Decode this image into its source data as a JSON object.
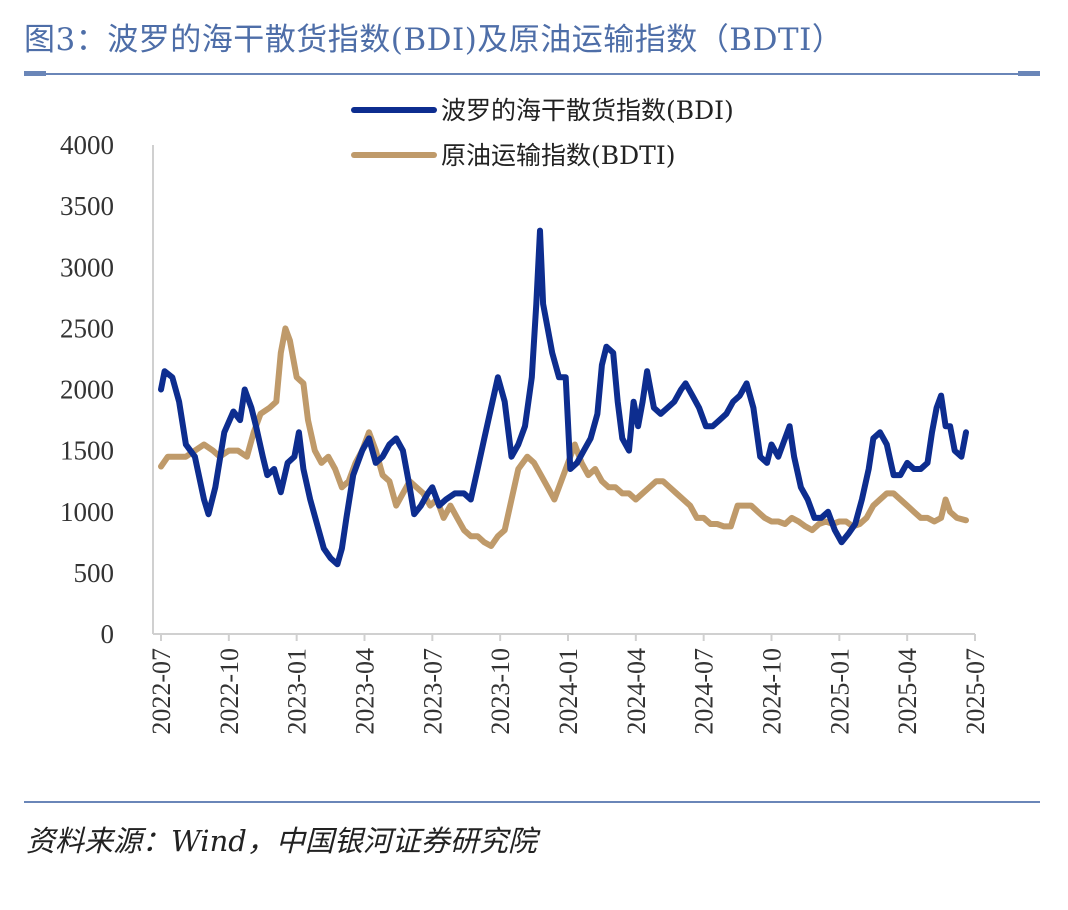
{
  "header": {
    "title": "图3：波罗的海干散货指数(BDI)及原油运输指数（BDTI）"
  },
  "footer": {
    "source": "资料来源：Wind，中国银河证券研究院"
  },
  "colors": {
    "bdi": "#0d2d8f",
    "bdti": "#bf9a6a",
    "rule": "#6a86b8",
    "title": "#4e6ea8"
  },
  "chart_data": {
    "type": "line",
    "title": "",
    "xlabel": "",
    "ylabel": "",
    "ylim": [
      0,
      4000
    ],
    "yticks": [
      "0",
      "500",
      "1000",
      "1500",
      "2000",
      "2500",
      "3000",
      "3500",
      "4000"
    ],
    "xticks": [
      "2022-07",
      "2022-10",
      "2023-01",
      "2023-04",
      "2023-07",
      "2023-10",
      "2024-01",
      "2024-04",
      "2024-07",
      "2024-10",
      "2025-01",
      "2025-04",
      "2025-07"
    ],
    "legend_position": "top",
    "series": [
      {
        "name": "波罗的海干散货指数(BDI)",
        "color": "#0d2d8f",
        "points": [
          [
            0,
            2000
          ],
          [
            0.08,
            2150
          ],
          [
            0.25,
            2100
          ],
          [
            0.4,
            1900
          ],
          [
            0.55,
            1550
          ],
          [
            0.75,
            1450
          ],
          [
            0.95,
            1100
          ],
          [
            1.05,
            980
          ],
          [
            1.2,
            1200
          ],
          [
            1.4,
            1650
          ],
          [
            1.6,
            1820
          ],
          [
            1.75,
            1750
          ],
          [
            1.85,
            2000
          ],
          [
            2.0,
            1850
          ],
          [
            2.1,
            1700
          ],
          [
            2.25,
            1450
          ],
          [
            2.35,
            1300
          ],
          [
            2.5,
            1350
          ],
          [
            2.65,
            1160
          ],
          [
            2.8,
            1400
          ],
          [
            2.95,
            1450
          ],
          [
            3.05,
            1650
          ],
          [
            3.15,
            1350
          ],
          [
            3.3,
            1100
          ],
          [
            3.45,
            900
          ],
          [
            3.6,
            700
          ],
          [
            3.75,
            620
          ],
          [
            3.9,
            570
          ],
          [
            4.0,
            700
          ],
          [
            4.1,
            950
          ],
          [
            4.25,
            1300
          ],
          [
            4.45,
            1500
          ],
          [
            4.6,
            1600
          ],
          [
            4.75,
            1400
          ],
          [
            4.9,
            1450
          ],
          [
            5.05,
            1550
          ],
          [
            5.2,
            1600
          ],
          [
            5.35,
            1500
          ],
          [
            5.5,
            1200
          ],
          [
            5.6,
            980
          ],
          [
            5.75,
            1050
          ],
          [
            5.9,
            1150
          ],
          [
            6.0,
            1200
          ],
          [
            6.15,
            1050
          ],
          [
            6.3,
            1100
          ],
          [
            6.5,
            1150
          ],
          [
            6.7,
            1150
          ],
          [
            6.85,
            1100
          ],
          [
            7.0,
            1350
          ],
          [
            7.15,
            1600
          ],
          [
            7.3,
            1850
          ],
          [
            7.45,
            2100
          ],
          [
            7.6,
            1900
          ],
          [
            7.75,
            1450
          ],
          [
            7.9,
            1550
          ],
          [
            8.05,
            1700
          ],
          [
            8.2,
            2100
          ],
          [
            8.3,
            2700
          ],
          [
            8.38,
            3300
          ],
          [
            8.45,
            2700
          ],
          [
            8.55,
            2500
          ],
          [
            8.65,
            2300
          ],
          [
            8.8,
            2100
          ],
          [
            8.95,
            2100
          ],
          [
            9.05,
            1350
          ],
          [
            9.2,
            1400
          ],
          [
            9.35,
            1500
          ],
          [
            9.5,
            1600
          ],
          [
            9.65,
            1800
          ],
          [
            9.75,
            2200
          ],
          [
            9.85,
            2350
          ],
          [
            10.0,
            2300
          ],
          [
            10.1,
            1900
          ],
          [
            10.2,
            1600
          ],
          [
            10.35,
            1500
          ],
          [
            10.45,
            1900
          ],
          [
            10.55,
            1700
          ],
          [
            10.65,
            1900
          ],
          [
            10.75,
            2150
          ],
          [
            10.9,
            1850
          ],
          [
            11.05,
            1800
          ],
          [
            11.2,
            1850
          ],
          [
            11.35,
            1900
          ],
          [
            11.5,
            2000
          ],
          [
            11.6,
            2050
          ],
          [
            11.75,
            1950
          ],
          [
            11.9,
            1850
          ],
          [
            12.05,
            1700
          ],
          [
            12.2,
            1700
          ],
          [
            12.35,
            1750
          ],
          [
            12.5,
            1800
          ],
          [
            12.65,
            1900
          ],
          [
            12.8,
            1950
          ],
          [
            12.95,
            2050
          ],
          [
            13.1,
            1850
          ],
          [
            13.25,
            1450
          ],
          [
            13.4,
            1400
          ],
          [
            13.5,
            1550
          ],
          [
            13.65,
            1450
          ],
          [
            13.75,
            1550
          ],
          [
            13.9,
            1700
          ],
          [
            14.0,
            1450
          ],
          [
            14.15,
            1200
          ],
          [
            14.3,
            1100
          ],
          [
            14.45,
            950
          ],
          [
            14.6,
            950
          ],
          [
            14.75,
            1000
          ],
          [
            14.9,
            850
          ],
          [
            15.05,
            750
          ],
          [
            15.2,
            820
          ],
          [
            15.35,
            900
          ],
          [
            15.5,
            1100
          ],
          [
            15.65,
            1350
          ],
          [
            15.75,
            1600
          ],
          [
            15.9,
            1650
          ],
          [
            16.05,
            1550
          ],
          [
            16.2,
            1300
          ],
          [
            16.35,
            1300
          ],
          [
            16.5,
            1400
          ],
          [
            16.65,
            1350
          ],
          [
            16.8,
            1350
          ],
          [
            16.95,
            1400
          ],
          [
            17.05,
            1650
          ],
          [
            17.15,
            1850
          ],
          [
            17.25,
            1950
          ],
          [
            17.35,
            1700
          ],
          [
            17.45,
            1700
          ],
          [
            17.55,
            1500
          ],
          [
            17.7,
            1450
          ],
          [
            17.8,
            1650
          ]
        ]
      },
      {
        "name": "原油运输指数(BDTI)",
        "color": "#bf9a6a",
        "points": [
          [
            0,
            1370
          ],
          [
            0.15,
            1450
          ],
          [
            0.35,
            1450
          ],
          [
            0.55,
            1450
          ],
          [
            0.75,
            1500
          ],
          [
            0.95,
            1550
          ],
          [
            1.15,
            1500
          ],
          [
            1.3,
            1450
          ],
          [
            1.5,
            1500
          ],
          [
            1.7,
            1500
          ],
          [
            1.9,
            1450
          ],
          [
            2.05,
            1650
          ],
          [
            2.2,
            1800
          ],
          [
            2.4,
            1850
          ],
          [
            2.55,
            1900
          ],
          [
            2.65,
            2300
          ],
          [
            2.75,
            2500
          ],
          [
            2.85,
            2400
          ],
          [
            3.0,
            2100
          ],
          [
            3.15,
            2050
          ],
          [
            3.25,
            1750
          ],
          [
            3.4,
            1500
          ],
          [
            3.55,
            1400
          ],
          [
            3.7,
            1450
          ],
          [
            3.85,
            1350
          ],
          [
            4.0,
            1200
          ],
          [
            4.15,
            1250
          ],
          [
            4.3,
            1400
          ],
          [
            4.45,
            1500
          ],
          [
            4.6,
            1650
          ],
          [
            4.75,
            1500
          ],
          [
            4.9,
            1300
          ],
          [
            5.05,
            1250
          ],
          [
            5.2,
            1050
          ],
          [
            5.35,
            1150
          ],
          [
            5.5,
            1250
          ],
          [
            5.65,
            1200
          ],
          [
            5.8,
            1150
          ],
          [
            5.95,
            1050
          ],
          [
            6.1,
            1100
          ],
          [
            6.25,
            950
          ],
          [
            6.4,
            1050
          ],
          [
            6.55,
            950
          ],
          [
            6.7,
            850
          ],
          [
            6.85,
            800
          ],
          [
            7.0,
            800
          ],
          [
            7.15,
            750
          ],
          [
            7.3,
            720
          ],
          [
            7.45,
            800
          ],
          [
            7.6,
            850
          ],
          [
            7.75,
            1100
          ],
          [
            7.9,
            1350
          ],
          [
            8.1,
            1450
          ],
          [
            8.25,
            1400
          ],
          [
            8.4,
            1300
          ],
          [
            8.55,
            1200
          ],
          [
            8.7,
            1100
          ],
          [
            8.85,
            1250
          ],
          [
            9.0,
            1400
          ],
          [
            9.15,
            1550
          ],
          [
            9.3,
            1400
          ],
          [
            9.45,
            1300
          ],
          [
            9.6,
            1350
          ],
          [
            9.75,
            1250
          ],
          [
            9.9,
            1200
          ],
          [
            10.05,
            1200
          ],
          [
            10.2,
            1150
          ],
          [
            10.35,
            1150
          ],
          [
            10.5,
            1100
          ],
          [
            10.65,
            1150
          ],
          [
            10.8,
            1200
          ],
          [
            10.95,
            1250
          ],
          [
            11.1,
            1250
          ],
          [
            11.25,
            1200
          ],
          [
            11.4,
            1150
          ],
          [
            11.55,
            1100
          ],
          [
            11.7,
            1050
          ],
          [
            11.85,
            950
          ],
          [
            12.0,
            950
          ],
          [
            12.15,
            900
          ],
          [
            12.3,
            900
          ],
          [
            12.45,
            880
          ],
          [
            12.6,
            880
          ],
          [
            12.75,
            1050
          ],
          [
            12.9,
            1050
          ],
          [
            13.05,
            1050
          ],
          [
            13.2,
            1000
          ],
          [
            13.35,
            950
          ],
          [
            13.5,
            920
          ],
          [
            13.65,
            920
          ],
          [
            13.8,
            900
          ],
          [
            13.95,
            950
          ],
          [
            14.1,
            920
          ],
          [
            14.25,
            880
          ],
          [
            14.4,
            850
          ],
          [
            14.55,
            900
          ],
          [
            14.7,
            920
          ],
          [
            14.85,
            900
          ],
          [
            15.0,
            920
          ],
          [
            15.15,
            920
          ],
          [
            15.3,
            880
          ],
          [
            15.45,
            900
          ],
          [
            15.6,
            950
          ],
          [
            15.75,
            1050
          ],
          [
            15.9,
            1100
          ],
          [
            16.05,
            1150
          ],
          [
            16.2,
            1150
          ],
          [
            16.35,
            1100
          ],
          [
            16.5,
            1050
          ],
          [
            16.65,
            1000
          ],
          [
            16.8,
            950
          ],
          [
            16.95,
            950
          ],
          [
            17.1,
            920
          ],
          [
            17.25,
            950
          ],
          [
            17.35,
            1100
          ],
          [
            17.45,
            1000
          ],
          [
            17.6,
            950
          ],
          [
            17.8,
            930
          ]
        ]
      }
    ]
  }
}
